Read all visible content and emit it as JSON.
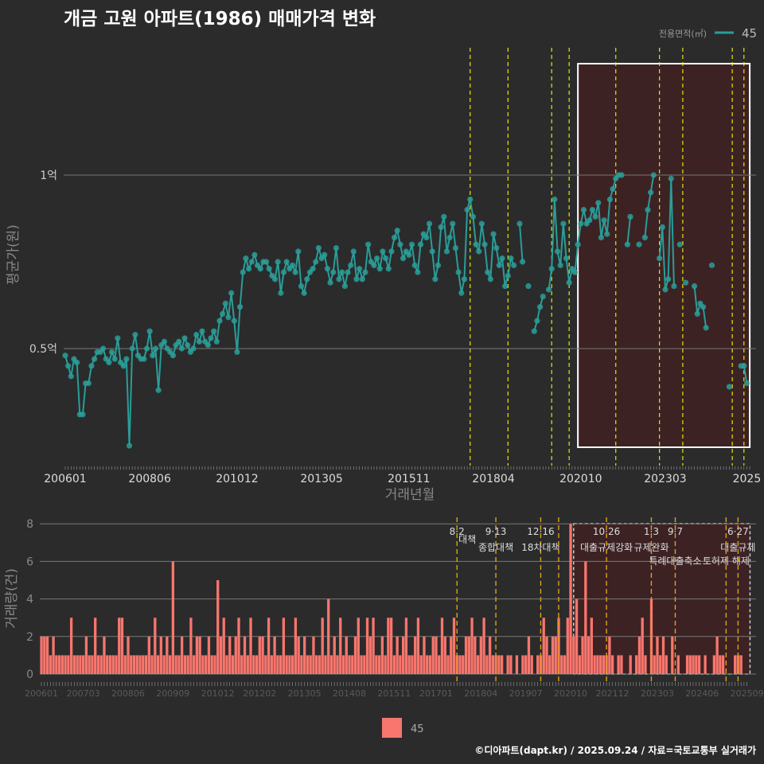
{
  "title": "개금 고원 아파트(1986) 매매가격 변화",
  "footer": "©디아파트(dapt.kr) / 2025.09.24 / 자료=국토교통부 실거래가",
  "colors": {
    "line": "#2a9d98",
    "bar": "#f8766d",
    "event_top": "#e6e600",
    "event_bottom": "#e0a010",
    "highlight": "#3d2224"
  },
  "chart_data": [
    {
      "type": "line",
      "title": "개금 고원 아파트(1986) 매매가격 변화",
      "xlabel": "거래년월",
      "ylabel": "평균가(원)",
      "legend": {
        "title": "전용면적(㎡)",
        "entries": [
          "45"
        ],
        "position": "top-right"
      },
      "start_month": "2006-01",
      "unit": "억",
      "yticks": [
        {
          "v": 1,
          "label": "1억"
        },
        {
          "v": 0.5,
          "label": "0.5억"
        }
      ],
      "ylim": [
        0.16,
        1.37
      ],
      "xticks": [
        {
          "m": 0,
          "label": "200601"
        },
        {
          "m": 29,
          "label": "200806"
        },
        {
          "m": 59,
          "label": "201012"
        },
        {
          "m": 88,
          "label": "201305"
        },
        {
          "m": 118,
          "label": "201511"
        },
        {
          "m": 147,
          "label": "201804"
        },
        {
          "m": 177,
          "label": "202010"
        },
        {
          "m": 206,
          "label": "202303"
        },
        {
          "m": 234,
          "label": "2025"
        }
      ],
      "highlight_months": [
        176,
        235
      ],
      "series": [
        {
          "name": "45",
          "values": [
            0.48,
            0.45,
            0.42,
            0.47,
            0.46,
            0.31,
            0.31,
            0.4,
            0.4,
            0.45,
            0.47,
            0.49,
            0.49,
            0.5,
            0.47,
            0.46,
            0.49,
            0.47,
            0.53,
            0.46,
            0.45,
            0.47,
            0.22,
            0.5,
            0.54,
            0.48,
            0.47,
            0.47,
            0.5,
            0.55,
            0.48,
            0.5,
            0.38,
            0.51,
            0.52,
            0.5,
            0.49,
            0.48,
            0.51,
            0.52,
            0.5,
            0.53,
            0.51,
            0.49,
            0.5,
            0.54,
            0.52,
            0.55,
            0.52,
            0.51,
            0.53,
            0.55,
            0.52,
            0.58,
            0.6,
            0.63,
            0.59,
            0.66,
            0.58,
            0.49,
            0.62,
            0.72,
            0.76,
            0.73,
            0.75,
            0.77,
            0.74,
            0.73,
            0.75,
            0.75,
            0.73,
            0.71,
            0.7,
            0.75,
            0.66,
            0.72,
            0.75,
            0.73,
            0.74,
            0.72,
            0.78,
            0.68,
            0.66,
            0.7,
            0.72,
            0.73,
            0.75,
            0.79,
            0.76,
            0.77,
            0.73,
            0.69,
            0.72,
            0.79,
            0.7,
            0.72,
            0.68,
            0.72,
            0.74,
            0.78,
            0.7,
            0.73,
            0.7,
            0.72,
            0.8,
            0.75,
            0.74,
            0.76,
            0.73,
            0.78,
            0.76,
            0.73,
            0.78,
            0.82,
            0.84,
            0.8,
            0.76,
            0.78,
            0.77,
            0.8,
            0.74,
            0.72,
            0.8,
            0.83,
            0.82,
            0.86,
            0.78,
            0.7,
            0.74,
            0.85,
            0.88,
            0.78,
            0.82,
            0.86,
            0.79,
            0.72,
            0.66,
            0.7,
            0.9,
            0.93,
            0.88,
            0.8,
            0.78,
            0.86,
            0.8,
            0.72,
            0.7,
            0.83,
            0.79,
            0.74,
            0.76,
            0.68,
            0.71,
            0.76,
            0.74,
            null,
            0.86,
            0.75,
            null,
            0.68,
            null,
            0.55,
            0.58,
            0.62,
            0.65,
            null,
            0.67,
            0.73,
            0.93,
            0.78,
            0.74,
            0.86,
            0.76,
            0.69,
            0.73,
            0.72,
            0.8,
            0.86,
            0.9,
            0.86,
            0.87,
            0.9,
            0.88,
            0.92,
            0.82,
            0.87,
            0.83,
            0.93,
            0.96,
            0.99,
            1.0,
            1.0,
            null,
            0.8,
            0.88,
            null,
            null,
            0.8,
            null,
            0.82,
            0.9,
            0.95,
            1.0,
            null,
            0.76,
            0.85,
            0.67,
            0.7,
            0.99,
            0.68,
            null,
            0.8,
            null,
            0.69,
            null,
            null,
            0.68,
            0.6,
            0.63,
            0.62,
            0.56,
            null,
            0.74,
            null,
            null,
            null,
            null,
            null,
            0.39,
            null,
            null,
            null,
            0.45,
            0.45,
            0.4,
            null
          ]
        }
      ]
    },
    {
      "type": "bar",
      "xlabel": "",
      "ylabel": "거래량(건)",
      "ylim": [
        0,
        8
      ],
      "legend": {
        "entries": [
          "45"
        ],
        "position": "bottom"
      },
      "yticks": [
        0,
        2,
        4,
        6,
        8
      ],
      "xticks": [
        {
          "m": 0,
          "label": "200601"
        },
        {
          "m": 14,
          "label": "200703"
        },
        {
          "m": 29,
          "label": "200806"
        },
        {
          "m": 44,
          "label": "200909"
        },
        {
          "m": 59,
          "label": "201012"
        },
        {
          "m": 73,
          "label": "201202"
        },
        {
          "m": 88,
          "label": "201305"
        },
        {
          "m": 103,
          "label": "201408"
        },
        {
          "m": 118,
          "label": "201511"
        },
        {
          "m": 132,
          "label": "201701"
        },
        {
          "m": 147,
          "label": "201804"
        },
        {
          "m": 162,
          "label": "201907"
        },
        {
          "m": 177,
          "label": "202010"
        },
        {
          "m": 191,
          "label": "202112"
        },
        {
          "m": 206,
          "label": "202303"
        },
        {
          "m": 221,
          "label": "202406"
        },
        {
          "m": 236,
          "label": "202509"
        }
      ],
      "highlight_months": [
        178,
        237
      ],
      "series": [
        {
          "name": "45",
          "values": [
            2,
            2,
            2,
            1,
            2,
            1,
            1,
            1,
            1,
            1,
            3,
            1,
            1,
            1,
            1,
            2,
            1,
            1,
            3,
            1,
            1,
            2,
            1,
            1,
            1,
            1,
            3,
            3,
            1,
            2,
            1,
            1,
            1,
            1,
            1,
            1,
            2,
            1,
            3,
            1,
            2,
            1,
            2,
            1,
            6,
            1,
            1,
            2,
            1,
            1,
            3,
            1,
            2,
            2,
            1,
            1,
            2,
            1,
            1,
            5,
            2,
            3,
            1,
            2,
            1,
            2,
            3,
            1,
            2,
            1,
            3,
            1,
            1,
            2,
            2,
            1,
            3,
            1,
            2,
            1,
            1,
            3,
            1,
            1,
            1,
            3,
            2,
            1,
            2,
            1,
            1,
            2,
            1,
            1,
            3,
            1,
            4,
            1,
            2,
            1,
            3,
            1,
            2,
            1,
            1,
            2,
            3,
            1,
            1,
            3,
            2,
            3,
            1,
            1,
            2,
            1,
            3,
            3,
            1,
            2,
            1,
            2,
            3,
            1,
            1,
            2,
            3,
            1,
            2,
            1,
            1,
            2,
            2,
            1,
            3,
            2,
            1,
            2,
            3,
            1,
            1,
            1,
            2,
            2,
            3,
            2,
            1,
            2,
            3,
            1,
            2,
            1,
            1,
            1,
            1,
            0,
            1,
            1,
            0,
            1,
            0,
            1,
            1,
            2,
            1,
            0,
            1,
            1,
            3,
            2,
            1,
            2,
            2,
            3,
            1,
            1,
            3,
            8,
            2,
            4,
            1,
            2,
            6,
            2,
            3,
            1,
            1,
            1,
            1,
            1,
            2,
            1,
            0,
            1,
            1,
            0,
            0,
            1,
            0,
            1,
            2,
            3,
            1,
            0,
            4,
            1,
            2,
            1,
            2,
            1,
            0,
            2,
            0,
            1,
            0,
            0,
            1,
            1,
            1,
            1,
            1,
            0,
            1,
            0,
            0,
            1,
            2,
            1,
            1,
            0,
            0,
            0,
            1,
            1,
            1,
            0,
            0
          ]
        }
      ],
      "events": [
        {
          "m": 139,
          "date": "8·2",
          "name": "대책"
        },
        {
          "m": 152,
          "date": "9·13",
          "name": "종합대책"
        },
        {
          "m": 167,
          "date": "12·16",
          "name": "18차대책"
        },
        {
          "m": 173,
          "date": "",
          "name": ""
        },
        {
          "m": 189,
          "date": "10·26",
          "name": "대출규제강화"
        },
        {
          "m": 204,
          "date": "1·3",
          "name": "규제완화"
        },
        {
          "m": 212,
          "date": "9·7",
          "name": "특례대출축소"
        },
        {
          "m": 229,
          "date": "",
          "name": "토허제 해제"
        },
        {
          "m": 233,
          "date": "6·27",
          "name": "대출규제"
        }
      ]
    }
  ]
}
